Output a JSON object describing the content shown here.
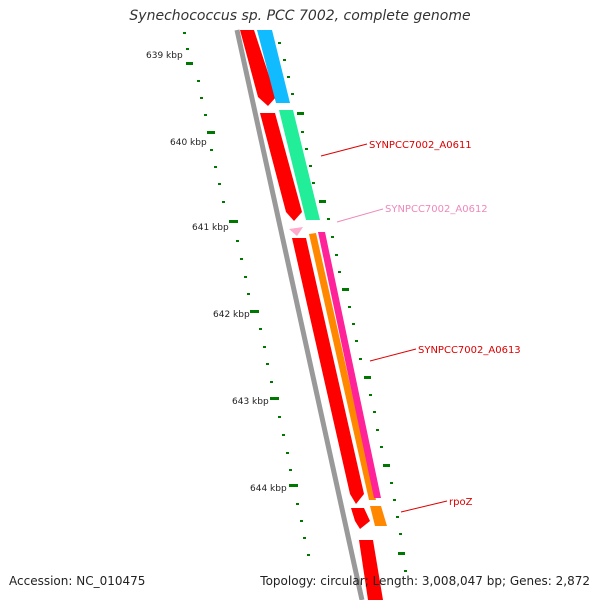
{
  "title": "Synechococcus sp. PCC 7002, complete genome",
  "ticks": [
    "639 kbp",
    "640 kbp",
    "641 kbp",
    "642 kbp",
    "643 kbp",
    "644 kbp"
  ],
  "genes": [
    {
      "label": "SYNPCC7002_A0611",
      "color": "#dd0000"
    },
    {
      "label": "SYNPCC7002_A0612",
      "color": "#ee88bb"
    },
    {
      "label": "SYNPCC7002_A0613",
      "color": "#dd0000"
    },
    {
      "label": "rpoZ",
      "color": "#dd0000"
    }
  ],
  "footer": {
    "accession_label": "Accession:",
    "accession": "NC_010475",
    "topology_label": "Topology:",
    "topology": "circular;",
    "length_label": "Length:",
    "length": "3,008,047 bp;",
    "genes_label": "Genes:",
    "genes_count": "2,872"
  },
  "colors": {
    "backbone": "#999999",
    "tick": "#007700",
    "gene_red": "#ff0000",
    "gene_blue": "#11bbff",
    "gene_green": "#22ee99",
    "gene_magenta": "#ff2299",
    "gene_orange": "#ff8800",
    "gene_pink": "#ffaacc"
  }
}
